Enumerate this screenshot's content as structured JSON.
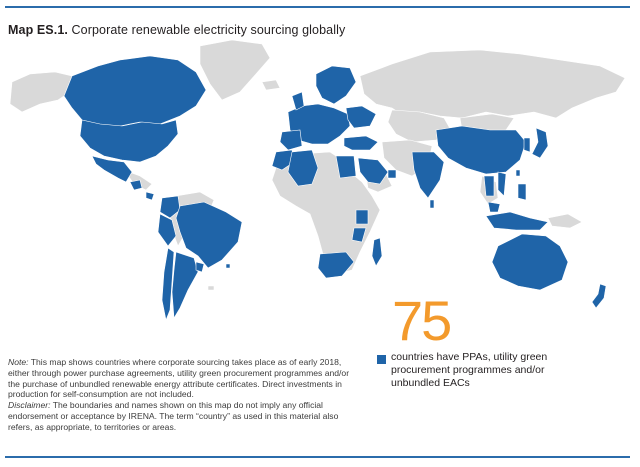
{
  "title": {
    "label": "Map ES.1.",
    "text": "Corporate renewable electricity sourcing globally"
  },
  "colors": {
    "sourcing_countries": "#1f64a8",
    "other_countries": "#d9d9d9",
    "accent_number": "#f39a2c",
    "rule": "#2b6cab"
  },
  "map": {
    "highlighted_regions": [
      "United States",
      "Canada",
      "Mexico",
      "Guatemala",
      "Costa Rica",
      "Colombia",
      "Peru",
      "Brazil",
      "Chile",
      "Argentina",
      "Western Europe",
      "Nordics",
      "Eastern Europe",
      "Turkey",
      "Morocco",
      "Algeria",
      "Egypt",
      "Saudi Arabia",
      "United Arab Emirates",
      "Kenya",
      "Tanzania",
      "Madagascar",
      "South Africa",
      "India",
      "Sri Lanka",
      "China",
      "Japan",
      "Republic of Korea",
      "Thailand",
      "Viet Nam",
      "Malaysia",
      "Indonesia",
      "Philippines",
      "Australia",
      "New Zealand"
    ]
  },
  "stat": {
    "count": "75",
    "description": "countries have PPAs, utility green procurement programmes and/or unbundled EACs"
  },
  "note": {
    "note_label": "Note:",
    "note_text": "This map shows countries where corporate sourcing takes place as of early 2018, either through power purchase agreements, utility green procurement programmes and/or the purchase of unbundled renewable energy attribute certificates. Direct investments in production for self-consumption are not included.",
    "disclaimer_label": "Disclaimer:",
    "disclaimer_text": "The boundaries and names shown on this map do not imply any official endorsement or acceptance by IRENA. The term “country” as used in this material also refers, as appropriate, to territories or areas."
  }
}
